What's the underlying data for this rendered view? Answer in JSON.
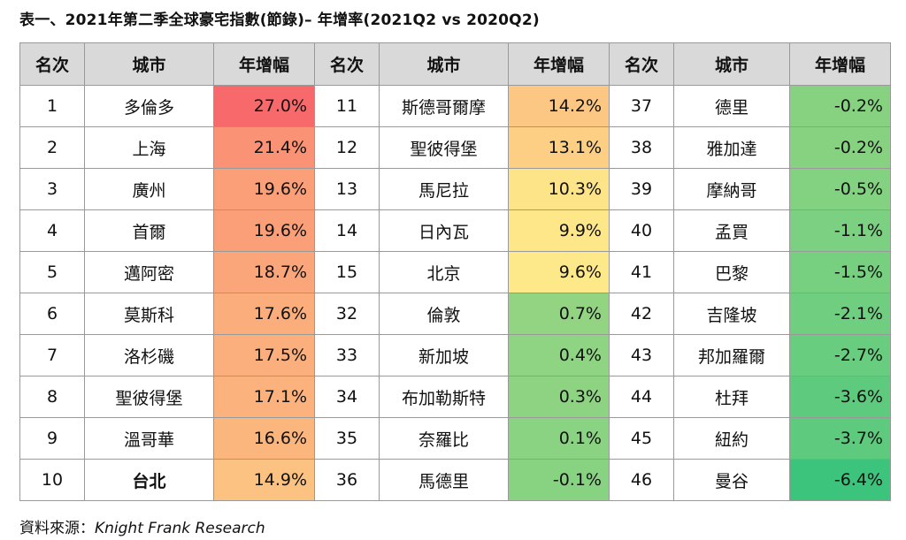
{
  "title": "表一、2021年第二季全球豪宅指數(節錄)– 年增率(2021Q2 vs 2020Q2)",
  "headers": {
    "rank": "名次",
    "city": "城市",
    "growth": "年增幅"
  },
  "chart_data": {
    "type": "table",
    "columns": [
      "名次",
      "城市",
      "年增幅"
    ],
    "groups": [
      [
        {
          "rank": "1",
          "city": "多倫多",
          "value": "27.0%",
          "pct": 27.0
        },
        {
          "rank": "2",
          "city": "上海",
          "value": "21.4%",
          "pct": 21.4
        },
        {
          "rank": "3",
          "city": "廣州",
          "value": "19.6%",
          "pct": 19.6
        },
        {
          "rank": "4",
          "city": "首爾",
          "value": "19.6%",
          "pct": 19.6
        },
        {
          "rank": "5",
          "city": "邁阿密",
          "value": "18.7%",
          "pct": 18.7
        },
        {
          "rank": "6",
          "city": "莫斯科",
          "value": "17.6%",
          "pct": 17.6
        },
        {
          "rank": "7",
          "city": "洛杉磯",
          "value": "17.5%",
          "pct": 17.5
        },
        {
          "rank": "8",
          "city": "聖彼得堡",
          "value": "17.1%",
          "pct": 17.1
        },
        {
          "rank": "9",
          "city": "溫哥華",
          "value": "16.6%",
          "pct": 16.6
        },
        {
          "rank": "10",
          "city": "台北",
          "value": "14.9%",
          "pct": 14.9,
          "highlight": true
        }
      ],
      [
        {
          "rank": "11",
          "city": "斯德哥爾摩",
          "value": "14.2%",
          "pct": 14.2
        },
        {
          "rank": "12",
          "city": "聖彼得堡",
          "value": "13.1%",
          "pct": 13.1
        },
        {
          "rank": "13",
          "city": "馬尼拉",
          "value": "10.3%",
          "pct": 10.3
        },
        {
          "rank": "14",
          "city": "日內瓦",
          "value": "9.9%",
          "pct": 9.9
        },
        {
          "rank": "15",
          "city": "北京",
          "value": "9.6%",
          "pct": 9.6
        },
        {
          "rank": "32",
          "city": "倫敦",
          "value": "0.7%",
          "pct": 0.7
        },
        {
          "rank": "33",
          "city": "新加坡",
          "value": "0.4%",
          "pct": 0.4
        },
        {
          "rank": "34",
          "city": "布加勒斯特",
          "value": "0.3%",
          "pct": 0.3
        },
        {
          "rank": "35",
          "city": "奈羅比",
          "value": "0.1%",
          "pct": 0.1
        },
        {
          "rank": "36",
          "city": "馬德里",
          "value": "-0.1%",
          "pct": -0.1
        }
      ],
      [
        {
          "rank": "37",
          "city": "德里",
          "value": "-0.2%",
          "pct": -0.2
        },
        {
          "rank": "38",
          "city": "雅加達",
          "value": "-0.2%",
          "pct": -0.2
        },
        {
          "rank": "39",
          "city": "摩納哥",
          "value": "-0.5%",
          "pct": -0.5
        },
        {
          "rank": "40",
          "city": "孟買",
          "value": "-1.1%",
          "pct": -1.1
        },
        {
          "rank": "41",
          "city": "巴黎",
          "value": "-1.5%",
          "pct": -1.5
        },
        {
          "rank": "42",
          "city": "吉隆坡",
          "value": "-2.1%",
          "pct": -2.1
        },
        {
          "rank": "43",
          "city": "邦加羅爾",
          "value": "-2.7%",
          "pct": -2.7
        },
        {
          "rank": "44",
          "city": "杜拜",
          "value": "-3.6%",
          "pct": -3.6
        },
        {
          "rank": "45",
          "city": "紐約",
          "value": "-3.7%",
          "pct": -3.7
        },
        {
          "rank": "46",
          "city": "曼谷",
          "value": "-6.4%",
          "pct": -6.4
        }
      ]
    ],
    "color_scale": {
      "min_color": "#3cc47c",
      "mid_color": "#fde98a",
      "max_color": "#f8696b",
      "header_bg": "#d9d9d9"
    }
  },
  "source": {
    "label": "資料來源：",
    "name": "Knight Frank Research"
  }
}
